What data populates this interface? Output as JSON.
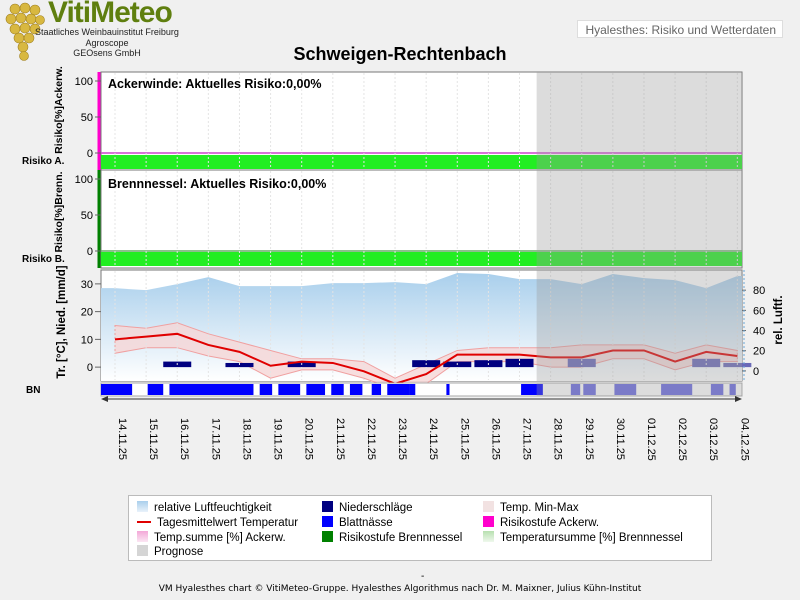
{
  "logo": {
    "brand": "VitiMeteo",
    "lines": [
      "Staatliches Weinbauinstitut Freiburg",
      "Agroscope",
      "GEOsens GmbH"
    ]
  },
  "header": {
    "app_title": "Hyalesthes: Risiko und Wetterdaten"
  },
  "page_title": "Schweigen-Rechtenbach",
  "panels": {
    "ackerwinde": {
      "label": "Ackerwinde: Aktuelles Risiko:0,00%",
      "ylabel": "Risiko[%]Ackerw.",
      "yticks": [
        "100",
        "50",
        "0"
      ],
      "strip_label": "Risiko A.",
      "risk_color": "#22ee22"
    },
    "brennnessel": {
      "label": "Brennnessel: Aktuelles Risiko:0,00%",
      "ylabel": "Risiko[%]Brenn.",
      "yticks": [
        "100",
        "50",
        "0"
      ],
      "strip_label": "Risiko B.",
      "risk_color": "#22ee22"
    },
    "weather": {
      "ylabel_left": "Tr. [°C], Nied. [mm/d]",
      "ylabel_right": "rel. Luftf.",
      "yticks_left": [
        "30",
        "20",
        "10",
        "0"
      ],
      "yticks_right": [
        "80",
        "60",
        "40",
        "20",
        "0"
      ],
      "bn_label": "BN"
    }
  },
  "chart_data": {
    "type": "line",
    "x": [
      "14.11.25",
      "15.11.25",
      "16.11.25",
      "17.11.25",
      "18.11.25",
      "19.11.25",
      "20.11.25",
      "21.11.25",
      "22.11.25",
      "23.11.25",
      "24.11.25",
      "25.11.25",
      "26.11.25",
      "27.11.25",
      "28.11.25",
      "29.11.25",
      "30.11.25",
      "01.12.25",
      "02.12.25",
      "03.12.25",
      "04.12.25"
    ],
    "forecast_start": "28.11.25",
    "risk_ackerwinde": {
      "ylim": [
        0,
        100
      ],
      "current": "0,00%"
    },
    "risk_brennnessel": {
      "ylim": [
        0,
        100
      ],
      "current": "0,00%"
    },
    "left_axis_ylim": [
      -5,
      35
    ],
    "right_axis_ylim": [
      -10,
      100
    ],
    "series": [
      {
        "name": "Tagesmittelwert Temperatur",
        "axis": "left",
        "values": [
          10,
          11,
          12,
          8,
          5.5,
          0.5,
          2,
          1.5,
          -1.5,
          -6,
          -2.5,
          4.5,
          4.5,
          4.5,
          3.5,
          3.5,
          6,
          6,
          2,
          5.5,
          4
        ]
      },
      {
        "name": "Temp. Min-Max (max)",
        "axis": "left",
        "values": [
          15,
          14,
          16,
          12,
          9,
          6,
          3,
          3,
          2,
          -4,
          1,
          6,
          7,
          7,
          7,
          8,
          8,
          8,
          5,
          8,
          6
        ]
      },
      {
        "name": "Temp. Min-Max (min)",
        "axis": "left",
        "values": [
          5,
          7,
          7,
          4,
          2,
          -4,
          -1,
          -1,
          -4,
          -8,
          -6,
          2,
          2,
          2,
          0,
          0,
          3,
          3,
          -1,
          2,
          2
        ]
      },
      {
        "name": "Niederschläge",
        "axis": "left",
        "values": [
          0,
          0,
          2,
          0,
          1.5,
          0,
          2,
          0,
          0,
          0,
          2.5,
          2,
          2.5,
          3,
          0,
          3,
          0,
          0,
          0,
          3,
          1.5
        ]
      },
      {
        "name": "relative Luftfeuchtigkeit",
        "axis": "right",
        "values": [
          82,
          80,
          86,
          93,
          84,
          84,
          84,
          87,
          87,
          88,
          86,
          97,
          96,
          91,
          91,
          86,
          96,
          92,
          90,
          82,
          94
        ]
      }
    ],
    "blattnaesse_segments": [
      [
        0,
        1
      ],
      [
        1.5,
        2
      ],
      [
        2.2,
        4.9
      ],
      [
        5.1,
        5.5
      ],
      [
        5.7,
        6.4
      ],
      [
        6.6,
        7.2
      ],
      [
        7.4,
        7.8
      ],
      [
        8.0,
        8.4
      ],
      [
        8.7,
        9.0
      ],
      [
        9.2,
        9.9
      ],
      [
        9.9,
        10.1
      ],
      [
        11.1,
        11.2
      ],
      [
        13.5,
        14.2
      ],
      [
        15.1,
        15.4
      ],
      [
        15.5,
        15.9
      ],
      [
        16.5,
        17.2
      ],
      [
        18.0,
        19.0
      ],
      [
        19.6,
        20.0
      ],
      [
        20.2,
        20.4
      ]
    ],
    "legend": [
      {
        "name": "relative Luftfeuchtigkeit",
        "color": "#a9cfec"
      },
      {
        "name": "Niederschläge",
        "color": "#000080"
      },
      {
        "name": "Temp. Min-Max",
        "color": "#f2e2e2"
      },
      {
        "name": "Tagesmittelwert Temperatur",
        "color": "#e00000"
      },
      {
        "name": "Blattnässe",
        "color": "#0000ff"
      },
      {
        "name": "Risikostufe Ackerw.",
        "color": "#ff00cc"
      },
      {
        "name": "Temp.summe [%] Ackerw.",
        "color": "#f3a8d8"
      },
      {
        "name": "Risikostufe Brennnessel",
        "color": "#008000"
      },
      {
        "name": "Temperatursumme [%] Brennnessel",
        "color": "#b7e0b0"
      },
      {
        "name": "Prognose",
        "color": "#d5d5d5"
      }
    ]
  },
  "footer": {
    "dash": "-",
    "text": "VM Hyalesthes chart © VitiMeteo-Gruppe. Hyalesthes Algorithmus nach Dr. M. Maixner, Julius Kühn-Institut"
  }
}
